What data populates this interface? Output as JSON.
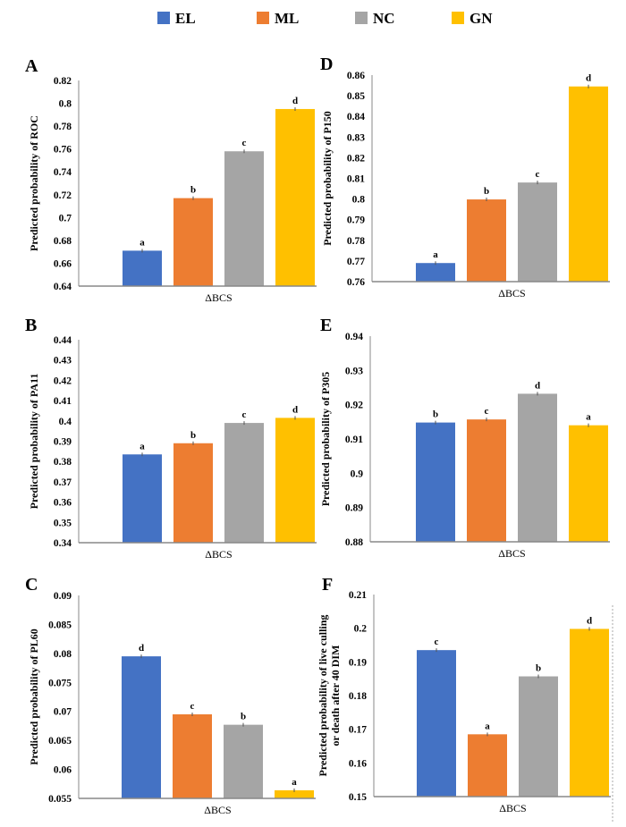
{
  "legend": [
    {
      "label": "EL",
      "color": "#4472C4"
    },
    {
      "label": "ML",
      "color": "#ED7D31"
    },
    {
      "label": "NC",
      "color": "#A5A5A5"
    },
    {
      "label": "GN",
      "color": "#FFC000"
    }
  ],
  "chart_data": [
    {
      "panel": "A",
      "type": "bar",
      "xlabel": "ΔBCS",
      "ylabel": "Predicted probability of ROC",
      "ylim": [
        0.64,
        0.82
      ],
      "yticks": [
        "0.64",
        "0.66",
        "0.68",
        "0.7",
        "0.72",
        "0.74",
        "0.76",
        "0.78",
        "0.8",
        "0.82"
      ],
      "categories": [
        "EL",
        "ML",
        "NC",
        "GN"
      ],
      "values": [
        0.671,
        0.717,
        0.758,
        0.795
      ],
      "labels": [
        "a",
        "b",
        "c",
        "d"
      ]
    },
    {
      "panel": "D",
      "type": "bar",
      "xlabel": "ΔBCS",
      "ylabel": "Predicted probability of P150",
      "ylim": [
        0.76,
        0.86
      ],
      "yticks": [
        "0.76",
        "0.77",
        "0.78",
        "0.79",
        "0.8",
        "0.81",
        "0.82",
        "0.83",
        "0.84",
        "0.85",
        "0.86"
      ],
      "categories": [
        "EL",
        "ML",
        "NC",
        "GN"
      ],
      "values": [
        0.769,
        0.7998,
        0.808,
        0.8545
      ],
      "labels": [
        "a",
        "b",
        "c",
        "d"
      ]
    },
    {
      "panel": "B",
      "type": "bar",
      "xlabel": "ΔBCS",
      "ylabel": "Predicted probability of PA11",
      "ylim": [
        0.34,
        0.44
      ],
      "yticks": [
        "0.34",
        "0.35",
        "0.36",
        "0.37",
        "0.38",
        "0.39",
        "0.4",
        "0.41",
        "0.42",
        "0.43",
        "0.44"
      ],
      "categories": [
        "EL",
        "ML",
        "NC",
        "GN"
      ],
      "values": [
        0.3835,
        0.389,
        0.399,
        0.4015
      ],
      "labels": [
        "a",
        "b",
        "c",
        "d"
      ]
    },
    {
      "panel": "E",
      "type": "bar",
      "xlabel": "ΔBCS",
      "ylabel": "Predicted probability of P305",
      "ylim": [
        0.88,
        0.94
      ],
      "yticks": [
        "0.88",
        "0.89",
        "0.9",
        "0.91",
        "0.92",
        "0.93",
        "0.94"
      ],
      "categories": [
        "EL",
        "ML",
        "NC",
        "GN"
      ],
      "values": [
        0.9148,
        0.9157,
        0.9232,
        0.914
      ],
      "labels": [
        "b",
        "c",
        "d",
        "a"
      ]
    },
    {
      "panel": "C",
      "type": "bar",
      "xlabel": "ΔBCS",
      "ylabel": "Predicted probability of PL60",
      "ylim": [
        0.055,
        0.09
      ],
      "yticks": [
        "0.055",
        "0.06",
        "0.065",
        "0.07",
        "0.075",
        "0.08",
        "0.085",
        "0.09"
      ],
      "categories": [
        "EL",
        "ML",
        "NC",
        "GN"
      ],
      "values": [
        0.0795,
        0.0695,
        0.0677,
        0.0564
      ],
      "labels": [
        "d",
        "c",
        "b",
        "a"
      ]
    },
    {
      "panel": "F",
      "type": "bar",
      "xlabel": "ΔBCS",
      "ylabel": [
        "Predicted probability of live culling",
        "or death after 40 DIM"
      ],
      "ylim": [
        0.15,
        0.21
      ],
      "yticks": [
        "0.15",
        "0.16",
        "0.17",
        "0.18",
        "0.19",
        "0.2",
        "0.21"
      ],
      "categories": [
        "EL",
        "ML",
        "NC",
        "GN"
      ],
      "values": [
        0.1935,
        0.1685,
        0.1857,
        0.1998
      ],
      "labels": [
        "c",
        "a",
        "b",
        "d"
      ]
    }
  ]
}
